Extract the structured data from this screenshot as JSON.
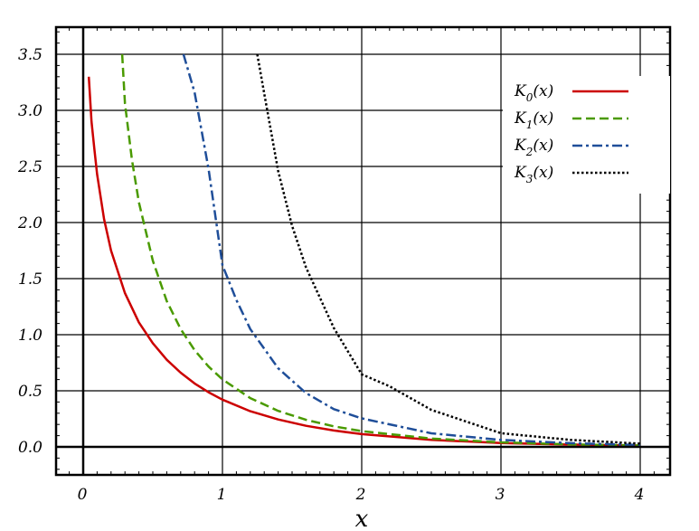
{
  "chart_data": {
    "type": "line",
    "title": "",
    "xlabel": "x",
    "ylabel": "",
    "xlim": [
      -0.2,
      4.2
    ],
    "ylim": [
      -0.25,
      3.75
    ],
    "xticks": [
      0,
      1,
      2,
      3,
      4
    ],
    "xtick_labels": [
      "0",
      "1",
      "2",
      "3",
      "4"
    ],
    "yticks": [
      0.0,
      0.5,
      1.0,
      1.5,
      2.0,
      2.5,
      3.0,
      3.5
    ],
    "ytick_labels": [
      "0.0",
      "0.5",
      "1.0",
      "1.5",
      "2.0",
      "2.5",
      "3.0",
      "3.5"
    ],
    "grid": true,
    "legend_position": "top-right",
    "series": [
      {
        "name": "K0(x)",
        "label_base": "K",
        "label_sub": "0",
        "label_suffix": "(x)",
        "color": "#cc0000",
        "dash": "solid",
        "x": [
          0.04,
          0.06,
          0.08,
          0.1,
          0.15,
          0.2,
          0.3,
          0.4,
          0.5,
          0.6,
          0.7,
          0.8,
          0.9,
          1.0,
          1.2,
          1.4,
          1.6,
          1.8,
          2.0,
          2.5,
          3.0,
          3.5,
          4.0
        ],
        "y": [
          3.3,
          2.9,
          2.66,
          2.43,
          2.03,
          1.75,
          1.37,
          1.11,
          0.924,
          0.777,
          0.661,
          0.565,
          0.487,
          0.421,
          0.318,
          0.244,
          0.188,
          0.146,
          0.114,
          0.062,
          0.035,
          0.02,
          0.011
        ]
      },
      {
        "name": "K1(x)",
        "label_base": "K",
        "label_sub": "1",
        "label_suffix": "(x)",
        "color": "#4a9a00",
        "dash": "dashed",
        "x": [
          0.28,
          0.3,
          0.35,
          0.4,
          0.5,
          0.6,
          0.7,
          0.8,
          0.9,
          1.0,
          1.2,
          1.4,
          1.6,
          1.8,
          2.0,
          2.5,
          3.0,
          3.5,
          4.0
        ],
        "y": [
          3.5,
          3.06,
          2.56,
          2.18,
          1.66,
          1.3,
          1.05,
          0.862,
          0.716,
          0.602,
          0.435,
          0.321,
          0.241,
          0.183,
          0.14,
          0.074,
          0.04,
          0.022,
          0.012
        ]
      },
      {
        "name": "K2(x)",
        "label_base": "K",
        "label_sub": "2",
        "label_suffix": "(x)",
        "color": "#1f4e99",
        "dash": "dashdot",
        "x": [
          0.72,
          0.8,
          0.9,
          1.0,
          1.1,
          1.2,
          1.4,
          1.6,
          1.8,
          2.0,
          2.5,
          3.0,
          3.5,
          4.0
        ],
        "y": [
          3.5,
          3.16,
          2.48,
          1.62,
          1.31,
          1.05,
          0.701,
          0.48,
          0.336,
          0.254,
          0.121,
          0.062,
          0.033,
          0.017
        ]
      },
      {
        "name": "K3(x)",
        "label_base": "K",
        "label_sub": "3",
        "label_suffix": "(x)",
        "color": "#000000",
        "dash": "dotted",
        "x": [
          1.25,
          1.3,
          1.4,
          1.5,
          1.6,
          1.8,
          2.0,
          2.2,
          2.5,
          3.0,
          3.5,
          4.0
        ],
        "y": [
          3.5,
          3.15,
          2.46,
          1.97,
          1.6,
          1.06,
          0.647,
          0.54,
          0.33,
          0.122,
          0.062,
          0.029
        ]
      }
    ]
  }
}
